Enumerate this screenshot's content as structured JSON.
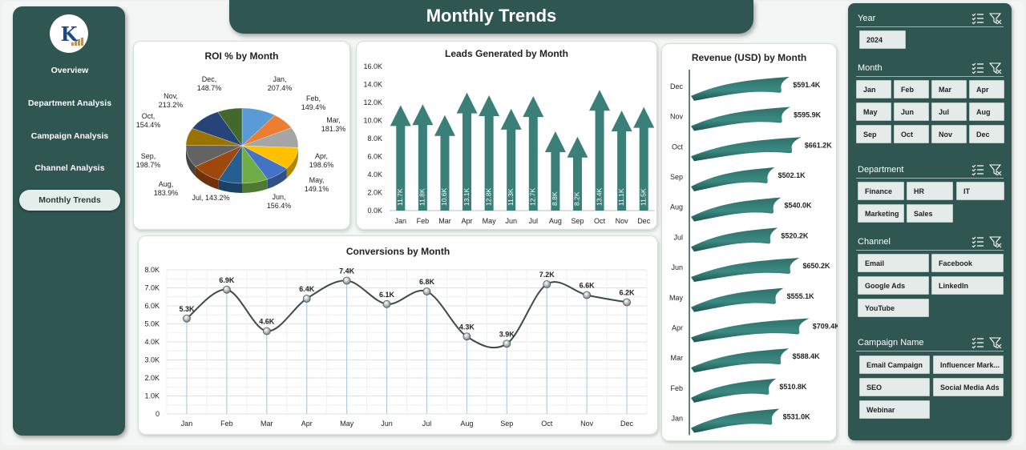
{
  "title": "Monthly Trends",
  "nav": {
    "items": [
      {
        "label": "Overview"
      },
      {
        "label": "Department Analysis"
      },
      {
        "label": "Campaign Analysis"
      },
      {
        "label": "Channel Analysis"
      },
      {
        "label": "Monthly Trends",
        "active": true
      }
    ]
  },
  "colors": {
    "sidebar": "#2f5651",
    "teal": "#3a7f78",
    "line": "#3a4c4a"
  },
  "chart_data": [
    {
      "type": "pie",
      "title": "ROI % by Month",
      "categories": [
        "Jan",
        "Feb",
        "Mar",
        "Apr",
        "May",
        "Jun",
        "Jul",
        "Aug",
        "Sep",
        "Oct",
        "Nov",
        "Dec"
      ],
      "values": [
        207.4,
        149.4,
        181.3,
        198.6,
        149.1,
        156.4,
        143.2,
        183.9,
        198.7,
        154.4,
        213.2,
        148.7
      ],
      "labels": [
        "Jan,\n207.4%",
        "Feb,\n149.4%",
        "Mar,\n181.3%",
        "Apr,\n198.6%",
        "May,\n149.1%",
        "Jun,\n156.4%",
        "Jul, 143.2%",
        "Aug,\n183.9%",
        "Sep,\n198.7%",
        "Oct,\n154.4%",
        "Nov,\n213.2%",
        "Dec,\n148.7%"
      ],
      "colors": [
        "#5b9bd5",
        "#ed7d31",
        "#a5a5a5",
        "#ffc000",
        "#4472c4",
        "#70ad47",
        "#255e91",
        "#9e480e",
        "#636363",
        "#997300",
        "#264478",
        "#43682b"
      ]
    },
    {
      "type": "bar",
      "title": "Leads Generated by Month",
      "categories": [
        "Jan",
        "Feb",
        "Mar",
        "Apr",
        "May",
        "Jun",
        "Jul",
        "Aug",
        "Sep",
        "Oct",
        "Nov",
        "Dec"
      ],
      "values": [
        11.7,
        11.8,
        10.6,
        13.1,
        12.8,
        11.3,
        12.7,
        8.8,
        8.2,
        13.4,
        11.1,
        11.5
      ],
      "value_labels": [
        "11.7K",
        "11.8K",
        "10.6K",
        "13.1K",
        "12.8K",
        "11.3K",
        "12.7K",
        "8.8K",
        "8.2K",
        "13.4K",
        "11.1K",
        "11.5K"
      ],
      "yticks": [
        "0.0K",
        "2.0K",
        "4.0K",
        "6.0K",
        "8.0K",
        "10.0K",
        "12.0K",
        "14.0K",
        "16.0K"
      ],
      "ylim": [
        0,
        16
      ]
    },
    {
      "type": "line",
      "title": "Conversions by Month",
      "categories": [
        "Jan",
        "Feb",
        "Mar",
        "Apr",
        "May",
        "Jun",
        "Jul",
        "Aug",
        "Sep",
        "Oct",
        "Nov",
        "Dec"
      ],
      "values": [
        5.3,
        6.9,
        4.6,
        6.4,
        7.4,
        6.1,
        6.8,
        4.3,
        3.9,
        7.2,
        6.6,
        6.2
      ],
      "value_labels": [
        "5.3K",
        "6.9K",
        "4.6K",
        "6.4K",
        "7.4K",
        "6.1K",
        "6.8K",
        "4.3K",
        "3.9K",
        "7.2K",
        "6.6K",
        "6.2K"
      ],
      "yticks": [
        "0",
        "1.0K",
        "2.0K",
        "3.0K",
        "4.0K",
        "5.0K",
        "6.0K",
        "7.0K",
        "8.0K"
      ],
      "ylim": [
        0,
        8
      ]
    },
    {
      "type": "bar",
      "orientation": "horizontal",
      "title": "Revenue (USD) by Month",
      "categories": [
        "Dec",
        "Nov",
        "Oct",
        "Sep",
        "Aug",
        "Jul",
        "Jun",
        "May",
        "Apr",
        "Mar",
        "Feb",
        "Jan"
      ],
      "values": [
        591.4,
        595.9,
        661.2,
        502.1,
        540.0,
        520.2,
        650.2,
        555.1,
        709.4,
        588.4,
        510.8,
        531.0
      ],
      "value_labels": [
        "$591.4K",
        "$595.9K",
        "$661.2K",
        "$502.1K",
        "$540.0K",
        "$520.2K",
        "$650.2K",
        "$555.1K",
        "$709.4K",
        "$588.4K",
        "$510.8K",
        "$531.0K"
      ]
    }
  ],
  "slicers": {
    "year": {
      "title": "Year",
      "items": [
        "2024"
      ]
    },
    "month": {
      "title": "Month",
      "items": [
        "Jan",
        "Feb",
        "Mar",
        "Apr",
        "May",
        "Jun",
        "Jul",
        "Aug",
        "Sep",
        "Oct",
        "Nov",
        "Dec"
      ]
    },
    "department": {
      "title": "Department",
      "items": [
        "Finance",
        "HR",
        "IT",
        "Marketing",
        "Sales"
      ]
    },
    "channel": {
      "title": "Channel",
      "items": [
        "Email",
        "Facebook",
        "Google Ads",
        "LinkedIn",
        "YouTube"
      ]
    },
    "campaign": {
      "title": "Campaign Name",
      "items": [
        "Email Campaign",
        "Influencer Mark...",
        "SEO",
        "Social Media Ads",
        "Webinar"
      ]
    }
  }
}
